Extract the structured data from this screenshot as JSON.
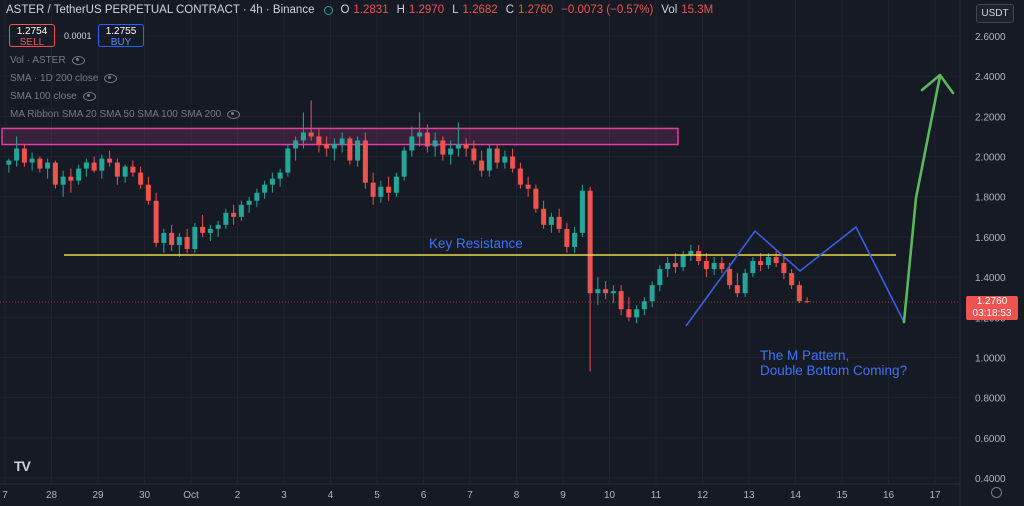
{
  "header": {
    "symbol": "ASTER / TetherUS PERPETUAL CONTRACT · 4h · Binance",
    "o_label": "O",
    "o": "1.2831",
    "h_label": "H",
    "h": "1.2970",
    "l_label": "L",
    "l": "1.2682",
    "c_label": "C",
    "c": "1.2760",
    "change": "−0.0073 (−0.57%)",
    "vol_label": "Vol",
    "vol": "15.3M"
  },
  "trade": {
    "sell_price": "1.2754",
    "sell_label": "SELL",
    "spread": "0.0001",
    "buy_price": "1.2755",
    "buy_label": "BUY"
  },
  "indicators": [
    "Vol · ASTER",
    "SMA · 1D 200 close",
    "SMA 100 close",
    "MA Ribbon SMA 20 SMA 50 SMA 100 SMA 200"
  ],
  "currency": "USDT",
  "price_tag": {
    "price": "1.2760",
    "countdown": "03:18:53"
  },
  "annotations": {
    "key_resistance": "Key Resistance",
    "pattern_line1": "The M Pattern,",
    "pattern_line2": "Double Bottom Coming?"
  },
  "logo": "TV",
  "colors": {
    "up": "#26a69a",
    "down": "#ef5350",
    "resistance": "#e6d84a",
    "zone": "#e040a0",
    "pattern": "#3b5fe0",
    "arrow": "#5cb85c"
  },
  "chart_data": {
    "type": "candlestick",
    "interval": "4h",
    "x_ticks": [
      "7",
      "28",
      "29",
      "30",
      "Oct",
      "2",
      "3",
      "4",
      "5",
      "6",
      "7",
      "8",
      "9",
      "10",
      "11",
      "12",
      "13",
      "14",
      "15",
      "16",
      "17"
    ],
    "y_ticks": [
      "2.6000",
      "2.4000",
      "2.2000",
      "2.0000",
      "1.8000",
      "1.6000",
      "1.4000",
      "1.2000",
      "1.0000",
      "0.8000",
      "0.6000",
      "0.4000"
    ],
    "ylim": [
      0.4,
      2.6
    ],
    "x_start": "Sep 27",
    "candles_per_day": 6,
    "candles": [
      [
        1.96,
        1.99,
        1.92,
        1.98
      ],
      [
        1.98,
        2.1,
        1.95,
        2.04
      ],
      [
        2.04,
        2.06,
        1.95,
        1.97
      ],
      [
        1.97,
        2.02,
        1.93,
        1.99
      ],
      [
        1.99,
        2.0,
        1.92,
        1.94
      ],
      [
        1.94,
        1.99,
        1.89,
        1.97
      ],
      [
        1.97,
        1.98,
        1.84,
        1.86
      ],
      [
        1.86,
        1.93,
        1.8,
        1.9
      ],
      [
        1.9,
        1.94,
        1.82,
        1.88
      ],
      [
        1.88,
        1.96,
        1.86,
        1.94
      ],
      [
        1.94,
        1.99,
        1.9,
        1.97
      ],
      [
        1.97,
        2.0,
        1.92,
        1.93
      ],
      [
        1.93,
        2.01,
        1.89,
        1.99
      ],
      [
        1.99,
        2.03,
        1.95,
        1.97
      ],
      [
        1.97,
        1.99,
        1.86,
        1.9
      ],
      [
        1.9,
        1.96,
        1.87,
        1.95
      ],
      [
        1.95,
        1.98,
        1.9,
        1.92
      ],
      [
        1.92,
        1.95,
        1.84,
        1.86
      ],
      [
        1.86,
        1.9,
        1.76,
        1.78
      ],
      [
        1.78,
        1.82,
        1.55,
        1.57
      ],
      [
        1.57,
        1.64,
        1.52,
        1.62
      ],
      [
        1.62,
        1.66,
        1.53,
        1.56
      ],
      [
        1.56,
        1.62,
        1.5,
        1.6
      ],
      [
        1.6,
        1.64,
        1.52,
        1.54
      ],
      [
        1.54,
        1.67,
        1.52,
        1.65
      ],
      [
        1.65,
        1.71,
        1.6,
        1.62
      ],
      [
        1.62,
        1.66,
        1.58,
        1.64
      ],
      [
        1.64,
        1.68,
        1.6,
        1.66
      ],
      [
        1.66,
        1.74,
        1.64,
        1.72
      ],
      [
        1.72,
        1.76,
        1.66,
        1.7
      ],
      [
        1.7,
        1.78,
        1.68,
        1.76
      ],
      [
        1.76,
        1.8,
        1.72,
        1.78
      ],
      [
        1.78,
        1.84,
        1.75,
        1.82
      ],
      [
        1.82,
        1.88,
        1.79,
        1.86
      ],
      [
        1.86,
        1.92,
        1.82,
        1.89
      ],
      [
        1.89,
        1.94,
        1.85,
        1.92
      ],
      [
        1.92,
        2.06,
        1.9,
        2.04
      ],
      [
        2.04,
        2.1,
        1.98,
        2.08
      ],
      [
        2.08,
        2.22,
        2.04,
        2.12
      ],
      [
        2.12,
        2.28,
        2.08,
        2.1
      ],
      [
        2.1,
        2.14,
        2.02,
        2.06
      ],
      [
        2.06,
        2.1,
        2.0,
        2.04
      ],
      [
        2.04,
        2.09,
        1.98,
        2.06
      ],
      [
        2.06,
        2.12,
        2.02,
        2.09
      ],
      [
        2.09,
        2.1,
        1.96,
        1.98
      ],
      [
        1.98,
        2.1,
        1.95,
        2.08
      ],
      [
        2.08,
        2.12,
        1.84,
        1.87
      ],
      [
        1.87,
        1.92,
        1.76,
        1.8
      ],
      [
        1.8,
        1.88,
        1.77,
        1.85
      ],
      [
        1.85,
        1.9,
        1.78,
        1.82
      ],
      [
        1.82,
        1.92,
        1.8,
        1.9
      ],
      [
        1.9,
        2.05,
        1.88,
        2.03
      ],
      [
        2.03,
        2.15,
        2.0,
        2.1
      ],
      [
        2.1,
        2.22,
        2.05,
        2.12
      ],
      [
        2.12,
        2.16,
        2.02,
        2.05
      ],
      [
        2.05,
        2.12,
        2.0,
        2.08
      ],
      [
        2.08,
        2.1,
        1.98,
        2.01
      ],
      [
        2.01,
        2.08,
        1.96,
        2.04
      ],
      [
        2.04,
        2.17,
        2.0,
        2.06
      ],
      [
        2.06,
        2.09,
        2.0,
        2.04
      ],
      [
        2.04,
        2.08,
        1.96,
        1.98
      ],
      [
        1.98,
        2.03,
        1.9,
        1.93
      ],
      [
        1.93,
        2.06,
        1.9,
        2.04
      ],
      [
        2.04,
        2.06,
        1.94,
        1.97
      ],
      [
        1.97,
        2.03,
        1.94,
        2.0
      ],
      [
        2.0,
        2.04,
        1.92,
        1.94
      ],
      [
        1.94,
        1.97,
        1.84,
        1.86
      ],
      [
        1.86,
        1.9,
        1.8,
        1.84
      ],
      [
        1.84,
        1.86,
        1.72,
        1.74
      ],
      [
        1.74,
        1.78,
        1.64,
        1.66
      ],
      [
        1.66,
        1.72,
        1.62,
        1.7
      ],
      [
        1.7,
        1.74,
        1.62,
        1.64
      ],
      [
        1.64,
        1.67,
        1.52,
        1.55
      ],
      [
        1.55,
        1.65,
        1.52,
        1.62
      ],
      [
        1.62,
        1.86,
        1.6,
        1.83
      ],
      [
        1.83,
        1.85,
        0.93,
        1.32
      ],
      [
        1.32,
        1.4,
        1.26,
        1.34
      ],
      [
        1.34,
        1.38,
        1.29,
        1.32
      ],
      [
        1.32,
        1.36,
        1.27,
        1.33
      ],
      [
        1.33,
        1.36,
        1.21,
        1.24
      ],
      [
        1.24,
        1.3,
        1.18,
        1.2
      ],
      [
        1.2,
        1.26,
        1.17,
        1.24
      ],
      [
        1.24,
        1.3,
        1.21,
        1.28
      ],
      [
        1.28,
        1.38,
        1.25,
        1.36
      ],
      [
        1.36,
        1.46,
        1.33,
        1.44
      ],
      [
        1.44,
        1.5,
        1.4,
        1.47
      ],
      [
        1.47,
        1.52,
        1.42,
        1.45
      ],
      [
        1.45,
        1.53,
        1.43,
        1.51
      ],
      [
        1.51,
        1.56,
        1.48,
        1.53
      ],
      [
        1.53,
        1.56,
        1.46,
        1.48
      ],
      [
        1.48,
        1.52,
        1.4,
        1.44
      ],
      [
        1.44,
        1.5,
        1.41,
        1.47
      ],
      [
        1.47,
        1.5,
        1.42,
        1.44
      ],
      [
        1.44,
        1.47,
        1.34,
        1.36
      ],
      [
        1.36,
        1.42,
        1.3,
        1.32
      ],
      [
        1.32,
        1.44,
        1.3,
        1.42
      ],
      [
        1.42,
        1.5,
        1.4,
        1.48
      ],
      [
        1.48,
        1.52,
        1.43,
        1.46
      ],
      [
        1.46,
        1.52,
        1.44,
        1.5
      ],
      [
        1.5,
        1.53,
        1.45,
        1.47
      ],
      [
        1.47,
        1.5,
        1.39,
        1.42
      ],
      [
        1.42,
        1.44,
        1.34,
        1.36
      ],
      [
        1.36,
        1.38,
        1.27,
        1.28
      ],
      [
        1.28,
        1.3,
        1.27,
        1.276
      ]
    ],
    "lines": [
      {
        "name": "Key Resistance",
        "type": "horizontal",
        "y": 1.51
      }
    ],
    "zones": [
      {
        "type": "rectangle",
        "y_top": 2.14,
        "y_bottom": 2.06
      }
    ],
    "current_price": 1.276
  }
}
